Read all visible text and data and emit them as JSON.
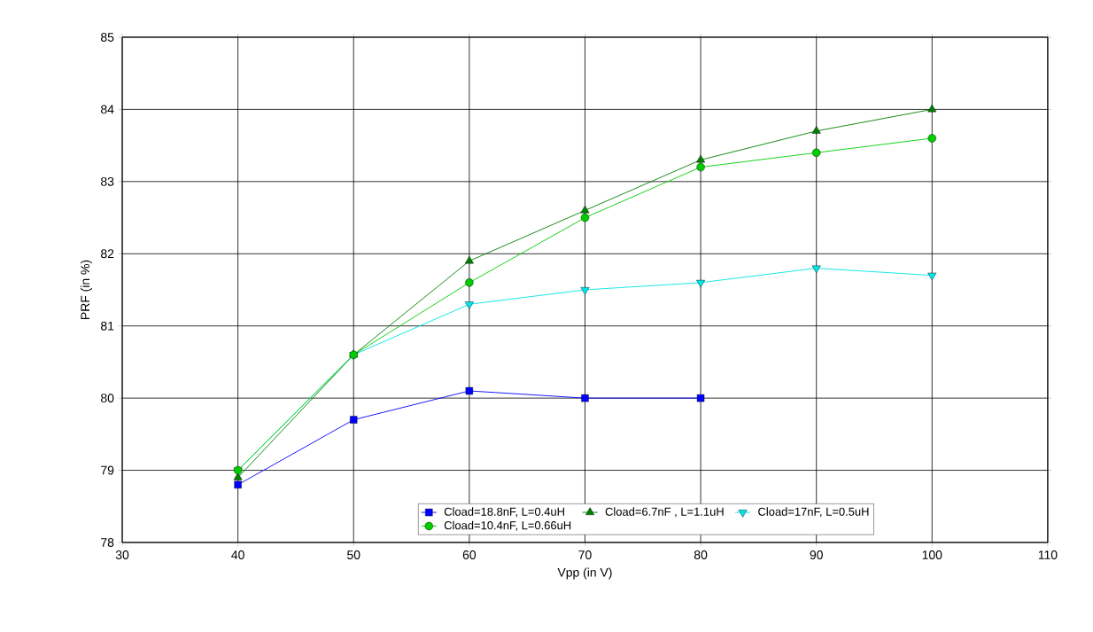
{
  "chart_data": {
    "type": "line",
    "xlabel": "Vpp (in V)",
    "ylabel": "PRF (in %)",
    "x": [
      40,
      50,
      60,
      70,
      80,
      90,
      100
    ],
    "series": [
      {
        "name": "Cload=18.8nF, L=0.4uH",
        "color": "#0000ff",
        "marker": "square",
        "values": [
          78.8,
          79.7,
          80.1,
          80.0,
          80.0,
          null,
          null
        ]
      },
      {
        "name": "Cload=6.7nF , L=1.1uH",
        "color": "#008000",
        "marker": "triangle",
        "values": [
          78.9,
          80.6,
          81.9,
          82.6,
          83.3,
          83.7,
          84.0
        ]
      },
      {
        "name": "Cload=17nF, L=0.5uH",
        "color": "#00e5e5",
        "marker": "triangle-down",
        "values": [
          79.0,
          80.6,
          81.3,
          81.5,
          81.6,
          81.8,
          81.7
        ]
      },
      {
        "name": "Cload=10.4nF, L=0.66uH",
        "color": "#00cc00",
        "marker": "circle",
        "values": [
          79.0,
          80.6,
          81.6,
          82.5,
          83.2,
          83.4,
          83.6
        ]
      }
    ],
    "xlim": [
      30,
      110
    ],
    "xticks": [
      30,
      40,
      50,
      60,
      70,
      80,
      90,
      100,
      110
    ],
    "ylim": [
      78,
      85
    ],
    "yticks": [
      78,
      79,
      80,
      81,
      82,
      83,
      84,
      85
    ],
    "grid": true,
    "legend": "bottom",
    "line_style": "solid"
  }
}
